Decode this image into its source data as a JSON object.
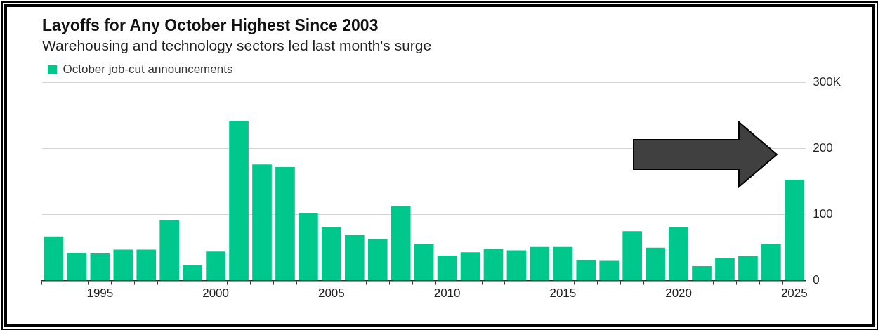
{
  "chart_data": {
    "type": "bar",
    "title": "Layoffs for Any October Highest Since 2003",
    "subtitle": "Warehousing and technology sectors led last month's surge",
    "categories": [
      null,
      null,
      "1995",
      null,
      null,
      null,
      null,
      "2000",
      null,
      null,
      null,
      null,
      "2005",
      null,
      null,
      null,
      null,
      "2010",
      null,
      null,
      null,
      null,
      "2015",
      null,
      null,
      null,
      null,
      "2020",
      null,
      null,
      null,
      null,
      "2025"
    ],
    "series": [
      {
        "name": "October job-cut announcements",
        "color": "#00c78c",
        "values": [
          67,
          42,
          41,
          47,
          47,
          91,
          23,
          44,
          242,
          176,
          172,
          102,
          81,
          69,
          63,
          113,
          55,
          38,
          43,
          48,
          46,
          51,
          51,
          31,
          30,
          75,
          50,
          81,
          22,
          34,
          37,
          56,
          153
        ]
      }
    ],
    "ylim": [
      0,
      300
    ],
    "yticks": [
      0,
      100,
      200,
      {
        "value": 300,
        "label": "300K"
      }
    ],
    "grid": "y",
    "legend": "top left"
  }
}
